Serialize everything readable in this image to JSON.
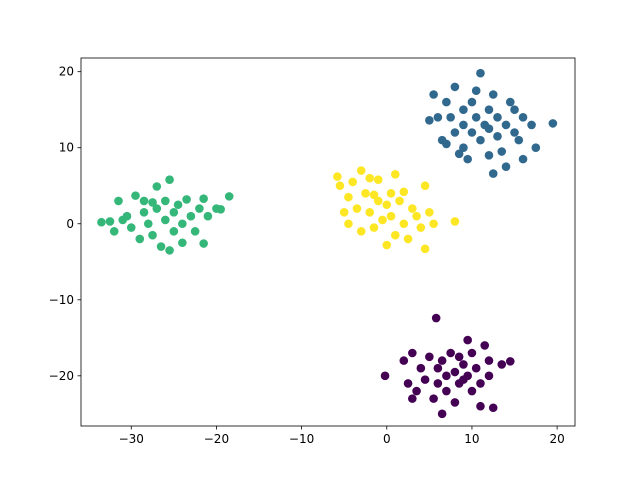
{
  "chart_data": {
    "type": "scatter",
    "xlim": [
      -35.9,
      22.1
    ],
    "ylim": [
      -26.6,
      21.8
    ],
    "xticks": [
      {
        "value": -30,
        "label": "−30"
      },
      {
        "value": -20,
        "label": "−20"
      },
      {
        "value": -10,
        "label": "−10"
      },
      0,
      10,
      20
    ],
    "yticks": [
      {
        "value": -20,
        "label": "−20"
      },
      {
        "value": -10,
        "label": "−10"
      },
      0,
      10,
      20
    ],
    "series": [
      {
        "color": "#31688e",
        "x": [
          5,
          5.5,
          6,
          6.5,
          7,
          7.5,
          8,
          8,
          8.5,
          9,
          9,
          9.5,
          10,
          10,
          10.5,
          11,
          11,
          11.5,
          12,
          12,
          12.5,
          12.5,
          13,
          13,
          13.5,
          14,
          14,
          14.5,
          15,
          15.5,
          16,
          16,
          17,
          17.5,
          19.5,
          10.5,
          9,
          7,
          12,
          15
        ],
        "y": [
          13.6,
          17,
          14,
          11,
          10.5,
          14,
          12,
          18,
          9.2,
          15,
          13,
          8.5,
          12,
          16,
          14,
          19.8,
          11,
          13,
          12.5,
          15,
          6.6,
          17,
          11.5,
          14,
          9.5,
          13,
          7.5,
          16,
          12,
          11,
          8.5,
          14,
          13,
          10,
          13.2,
          17.5,
          10,
          16,
          9,
          15
        ]
      },
      {
        "color": "#440154",
        "x": [
          -0.2,
          2,
          2.5,
          3,
          3.5,
          4,
          4.5,
          5,
          5.5,
          5.8,
          6,
          6,
          6.5,
          7,
          7,
          7.5,
          8,
          8,
          8.5,
          9,
          9.5,
          9.5,
          10,
          10,
          10.5,
          11,
          11,
          11.5,
          12,
          12.5,
          12,
          13.5,
          14.5,
          6.5,
          8.5,
          3,
          9
        ],
        "y": [
          -20,
          -18,
          -21,
          -17,
          -22,
          -19,
          -20.5,
          -17.5,
          -23,
          -12.4,
          -19,
          -21,
          -18,
          -20,
          -22,
          -17,
          -19.5,
          -23.5,
          -21,
          -18.5,
          -15.3,
          -20,
          -22,
          -17,
          -19,
          -21,
          -24,
          -16,
          -20,
          -24.2,
          -18,
          -18.5,
          -18.1,
          -25,
          -17.5,
          -23,
          -20.5
        ]
      },
      {
        "color": "#35b779",
        "x": [
          -33.5,
          -32.5,
          -32,
          -31.5,
          -31,
          -30.5,
          -30,
          -29.5,
          -29,
          -28.5,
          -28.5,
          -28,
          -27.5,
          -27,
          -27,
          -26.5,
          -26,
          -26,
          -25.5,
          -25.5,
          -25,
          -25,
          -24.5,
          -24,
          -24,
          -23.5,
          -23,
          -22.5,
          -22,
          -21.5,
          -21.5,
          -21,
          -20,
          -18.5,
          -19.5,
          -27.5
        ],
        "y": [
          0.2,
          0.3,
          -1,
          3,
          0.5,
          1,
          -0.5,
          3.7,
          -2,
          1.5,
          3,
          0,
          -1.5,
          2,
          4.9,
          -3,
          0.5,
          3,
          -3.5,
          5.8,
          1.5,
          -1,
          2.5,
          0,
          -2.5,
          3.2,
          1,
          -1,
          2,
          -2.6,
          3.3,
          1,
          2,
          3.6,
          1.9,
          2.8
        ]
      },
      {
        "color": "#fde725",
        "x": [
          -5.8,
          -5.5,
          -5,
          -4.5,
          -4.5,
          -4,
          -3.5,
          -3,
          -3,
          -2.5,
          -2,
          -2,
          -1.5,
          -1,
          -1,
          -0.5,
          0,
          0,
          0.5,
          0.5,
          1,
          1.5,
          2,
          2,
          2.5,
          3,
          3.5,
          4,
          4.5,
          4.5,
          5,
          5.5,
          8,
          -1.5,
          1
        ],
        "y": [
          6.2,
          5,
          1.5,
          3.5,
          0,
          5.5,
          2,
          7,
          -1,
          4,
          1.5,
          6,
          -0.5,
          3,
          5.8,
          0.5,
          2.5,
          -2.8,
          4,
          1,
          -1.5,
          3,
          0,
          4.2,
          -2,
          2,
          1,
          -0.5,
          -3.3,
          5,
          1.5,
          0,
          0.3,
          3.8,
          6.5
        ]
      }
    ]
  }
}
